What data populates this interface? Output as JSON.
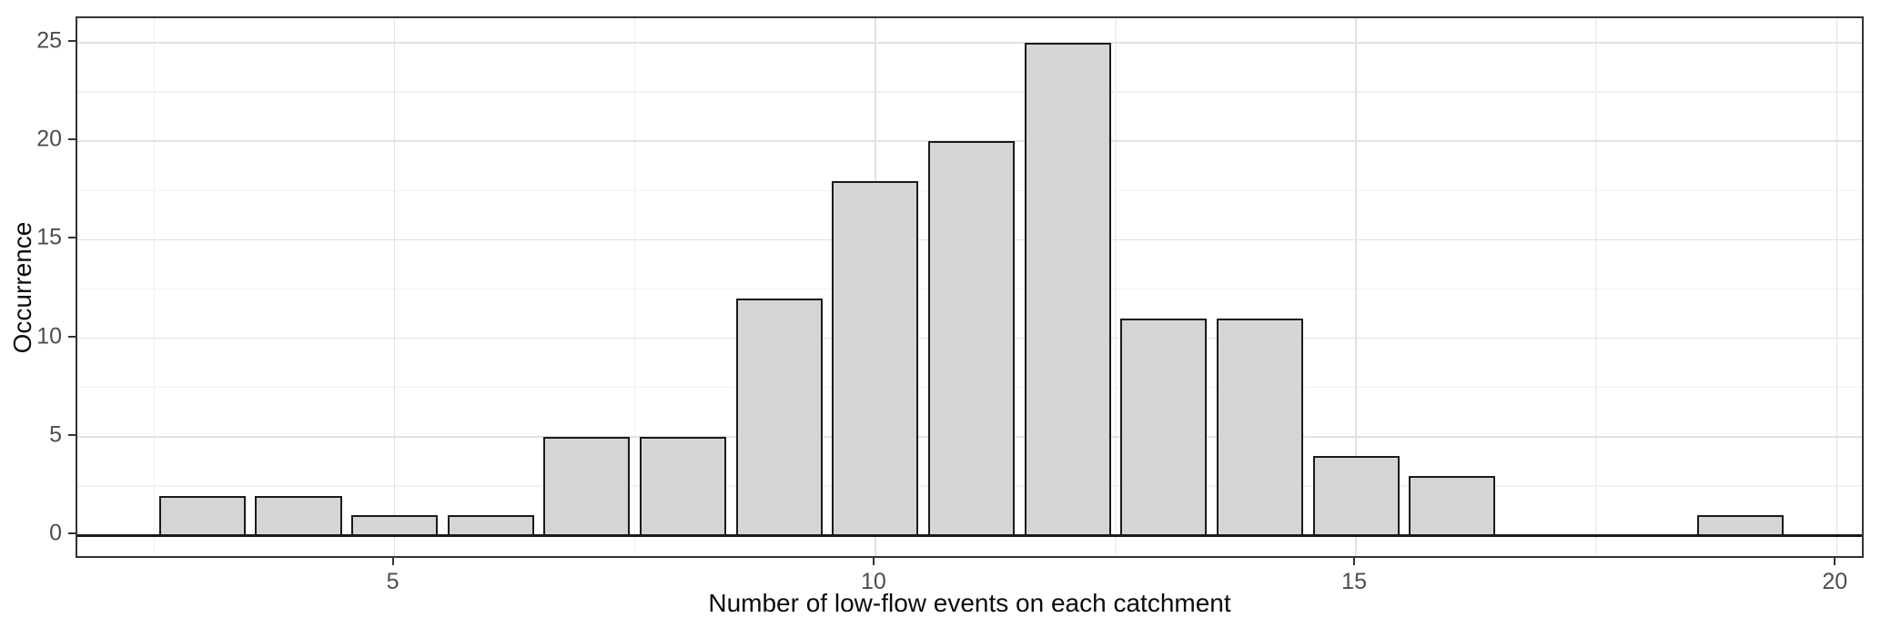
{
  "chart_data": {
    "type": "bar",
    "subtype": "histogram",
    "title": "",
    "xlabel": "Number of low-flow events on each catchment",
    "ylabel": "Occurrence",
    "x": [
      3,
      4,
      5,
      6,
      7,
      8,
      9,
      10,
      11,
      12,
      13,
      14,
      15,
      16,
      19
    ],
    "values": [
      2,
      2,
      1,
      1,
      5,
      5,
      12,
      18,
      20,
      25,
      11,
      11,
      4,
      3,
      1
    ],
    "bar_width_units": 0.9,
    "x_axis": {
      "range": [
        1.7,
        20.3
      ],
      "major_ticks": [
        5,
        10,
        15,
        20
      ],
      "tick_labels": [
        "5",
        "10",
        "15",
        "20"
      ],
      "minor_gridlines": [
        2.5,
        7.5,
        12.5,
        17.5
      ]
    },
    "y_axis": {
      "range": [
        -1.25,
        26.25
      ],
      "major_ticks": [
        0,
        5,
        10,
        15,
        20,
        25
      ],
      "tick_labels": [
        "0",
        "5",
        "10",
        "15",
        "20",
        "25"
      ],
      "minor_gridlines": [
        2.5,
        7.5,
        12.5,
        17.5,
        22.5
      ]
    },
    "zero_line": true,
    "grid": true,
    "legend": "none",
    "colors": {
      "bar_fill": "#d5d5d5",
      "bar_border": "#1a1a1a",
      "grid_major": "#e2e2e2",
      "grid_minor": "#f1f1f1",
      "panel_border": "#333333",
      "zero_line": "#1a1a1a",
      "tick_mark": "#333333",
      "tick_label": "#4d4d4d",
      "axis_title": "#0d0d0d",
      "background": "#ffffff"
    }
  }
}
